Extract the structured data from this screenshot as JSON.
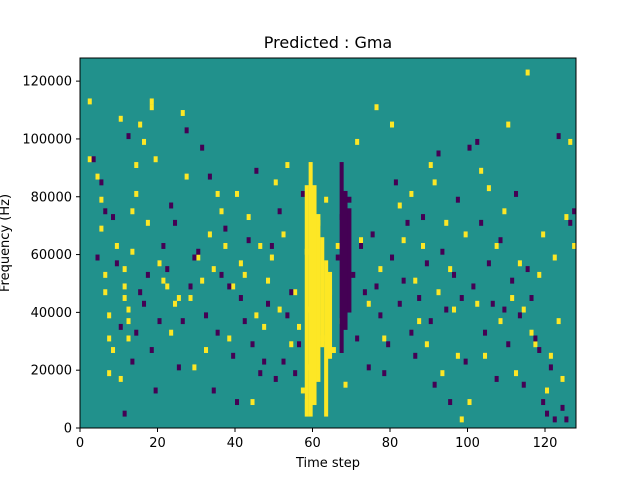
{
  "chart_data": {
    "type": "heatmap",
    "title": "Predicted : Gma",
    "xlabel": "Time step",
    "ylabel": "Frequency (Hz)",
    "xlim": [
      0,
      128
    ],
    "ylim": [
      0,
      128000
    ],
    "xticks": [
      0,
      20,
      40,
      60,
      80,
      100,
      120
    ],
    "yticks": [
      0,
      20000,
      40000,
      60000,
      80000,
      100000,
      120000
    ],
    "grid": false,
    "legend": "none",
    "colors": {
      "background": "#21918c",
      "high": "#fde725",
      "low": "#440154"
    },
    "n_time_steps": 128,
    "n_freq_bins": 64,
    "bin_width_hz": 2000,
    "high_cells": [
      [
        2,
        112000
      ],
      [
        2,
        92000
      ],
      [
        4,
        86000
      ],
      [
        5,
        78000
      ],
      [
        5,
        68000
      ],
      [
        6,
        52000
      ],
      [
        6,
        46000
      ],
      [
        7,
        38000
      ],
      [
        7,
        30000
      ],
      [
        7,
        18000
      ],
      [
        8,
        26000
      ],
      [
        9,
        62000
      ],
      [
        10,
        106000
      ],
      [
        10,
        16000
      ],
      [
        11,
        54000
      ],
      [
        11,
        48000
      ],
      [
        11,
        44000
      ],
      [
        12,
        40000
      ],
      [
        12,
        36000
      ],
      [
        12,
        30000
      ],
      [
        13,
        60000
      ],
      [
        13,
        74000
      ],
      [
        14,
        80000
      ],
      [
        14,
        90000
      ],
      [
        15,
        104000
      ],
      [
        16,
        98000
      ],
      [
        17,
        70000
      ],
      [
        18,
        110000
      ],
      [
        18,
        112000
      ],
      [
        19,
        92000
      ],
      [
        20,
        56000
      ],
      [
        21,
        50000
      ],
      [
        22,
        48000
      ],
      [
        23,
        32000
      ],
      [
        24,
        42000
      ],
      [
        25,
        44000
      ],
      [
        26,
        108000
      ],
      [
        27,
        86000
      ],
      [
        28,
        44000
      ],
      [
        29,
        20000
      ],
      [
        30,
        58000
      ],
      [
        31,
        50000
      ],
      [
        32,
        26000
      ],
      [
        33,
        66000
      ],
      [
        34,
        54000
      ],
      [
        35,
        80000
      ],
      [
        36,
        74000
      ],
      [
        37,
        62000
      ],
      [
        38,
        30000
      ],
      [
        39,
        48000
      ],
      [
        40,
        80000
      ],
      [
        41,
        56000
      ],
      [
        42,
        52000
      ],
      [
        43,
        72000
      ],
      [
        44,
        8000
      ],
      [
        45,
        38000
      ],
      [
        46,
        62000
      ],
      [
        47,
        34000
      ],
      [
        48,
        50000
      ],
      [
        49,
        58000
      ],
      [
        50,
        84000
      ],
      [
        51,
        40000
      ],
      [
        52,
        66000
      ],
      [
        53,
        90000
      ],
      [
        54,
        28000
      ],
      [
        55,
        46000
      ],
      [
        56,
        34000
      ],
      [
        57,
        12000
      ],
      [
        58,
        60000
      ],
      [
        59,
        40000
      ],
      [
        59,
        20000
      ],
      [
        60,
        56000
      ],
      [
        61,
        70000
      ],
      [
        62,
        30000
      ],
      [
        63,
        78000
      ],
      [
        64,
        46000
      ],
      [
        65,
        26000
      ],
      [
        66,
        62000
      ],
      [
        67,
        36000
      ],
      [
        68,
        14000
      ],
      [
        71,
        98000
      ],
      [
        72,
        64000
      ],
      [
        74,
        42000
      ],
      [
        76,
        110000
      ],
      [
        77,
        54000
      ],
      [
        78,
        30000
      ],
      [
        80,
        104000
      ],
      [
        82,
        76000
      ],
      [
        83,
        64000
      ],
      [
        85,
        80000
      ],
      [
        86,
        50000
      ],
      [
        87,
        36000
      ],
      [
        88,
        62000
      ],
      [
        89,
        28000
      ],
      [
        90,
        90000
      ],
      [
        91,
        84000
      ],
      [
        92,
        46000
      ],
      [
        93,
        18000
      ],
      [
        94,
        70000
      ],
      [
        95,
        54000
      ],
      [
        96,
        40000
      ],
      [
        97,
        24000
      ],
      [
        98,
        2000
      ],
      [
        99,
        66000
      ],
      [
        100,
        8000
      ],
      [
        102,
        42000
      ],
      [
        103,
        88000
      ],
      [
        104,
        24000
      ],
      [
        105,
        82000
      ],
      [
        107,
        62000
      ],
      [
        108,
        36000
      ],
      [
        109,
        74000
      ],
      [
        110,
        104000
      ],
      [
        111,
        44000
      ],
      [
        112,
        18000
      ],
      [
        113,
        56000
      ],
      [
        114,
        40000
      ],
      [
        115,
        122000
      ],
      [
        116,
        32000
      ],
      [
        117,
        28000
      ],
      [
        118,
        52000
      ],
      [
        119,
        66000
      ],
      [
        120,
        12000
      ],
      [
        121,
        24000
      ],
      [
        122,
        58000
      ],
      [
        123,
        36000
      ],
      [
        124,
        16000
      ],
      [
        125,
        72000
      ],
      [
        126,
        98000
      ],
      [
        127,
        62000
      ]
    ],
    "low_cells": [
      [
        3,
        92000
      ],
      [
        4,
        58000
      ],
      [
        5,
        84000
      ],
      [
        6,
        74000
      ],
      [
        8,
        72000
      ],
      [
        9,
        56000
      ],
      [
        10,
        34000
      ],
      [
        11,
        4000
      ],
      [
        12,
        100000
      ],
      [
        13,
        22000
      ],
      [
        14,
        32000
      ],
      [
        15,
        46000
      ],
      [
        16,
        42000
      ],
      [
        17,
        52000
      ],
      [
        18,
        26000
      ],
      [
        19,
        12000
      ],
      [
        20,
        36000
      ],
      [
        21,
        62000
      ],
      [
        22,
        54000
      ],
      [
        23,
        76000
      ],
      [
        24,
        70000
      ],
      [
        25,
        20000
      ],
      [
        26,
        36000
      ],
      [
        27,
        102000
      ],
      [
        28,
        48000
      ],
      [
        29,
        58000
      ],
      [
        30,
        60000
      ],
      [
        31,
        96000
      ],
      [
        32,
        38000
      ],
      [
        33,
        86000
      ],
      [
        34,
        12000
      ],
      [
        35,
        32000
      ],
      [
        36,
        52000
      ],
      [
        37,
        68000
      ],
      [
        38,
        48000
      ],
      [
        39,
        24000
      ],
      [
        40,
        8000
      ],
      [
        41,
        44000
      ],
      [
        42,
        36000
      ],
      [
        43,
        64000
      ],
      [
        44,
        28000
      ],
      [
        45,
        88000
      ],
      [
        46,
        18000
      ],
      [
        47,
        22000
      ],
      [
        48,
        42000
      ],
      [
        49,
        62000
      ],
      [
        50,
        16000
      ],
      [
        51,
        74000
      ],
      [
        52,
        22000
      ],
      [
        53,
        38000
      ],
      [
        54,
        46000
      ],
      [
        55,
        18000
      ],
      [
        56,
        28000
      ],
      [
        57,
        80000
      ],
      [
        58,
        10000
      ],
      [
        66,
        58000
      ],
      [
        67,
        72000
      ],
      [
        68,
        74000
      ],
      [
        69,
        78000
      ],
      [
        70,
        52000
      ],
      [
        71,
        30000
      ],
      [
        72,
        62000
      ],
      [
        73,
        46000
      ],
      [
        74,
        20000
      ],
      [
        75,
        66000
      ],
      [
        76,
        48000
      ],
      [
        77,
        38000
      ],
      [
        78,
        18000
      ],
      [
        79,
        28000
      ],
      [
        80,
        58000
      ],
      [
        81,
        84000
      ],
      [
        82,
        42000
      ],
      [
        83,
        50000
      ],
      [
        84,
        70000
      ],
      [
        85,
        32000
      ],
      [
        86,
        24000
      ],
      [
        87,
        44000
      ],
      [
        88,
        72000
      ],
      [
        89,
        56000
      ],
      [
        90,
        36000
      ],
      [
        91,
        14000
      ],
      [
        92,
        94000
      ],
      [
        93,
        60000
      ],
      [
        94,
        40000
      ],
      [
        95,
        8000
      ],
      [
        96,
        52000
      ],
      [
        97,
        78000
      ],
      [
        98,
        44000
      ],
      [
        99,
        22000
      ],
      [
        100,
        96000
      ],
      [
        101,
        48000
      ],
      [
        102,
        98000
      ],
      [
        103,
        70000
      ],
      [
        104,
        32000
      ],
      [
        105,
        56000
      ],
      [
        106,
        42000
      ],
      [
        107,
        16000
      ],
      [
        108,
        64000
      ],
      [
        109,
        40000
      ],
      [
        110,
        28000
      ],
      [
        111,
        50000
      ],
      [
        112,
        80000
      ],
      [
        113,
        38000
      ],
      [
        114,
        14000
      ],
      [
        115,
        54000
      ],
      [
        116,
        44000
      ],
      [
        117,
        30000
      ],
      [
        118,
        26000
      ],
      [
        119,
        8000
      ],
      [
        120,
        4000
      ],
      [
        121,
        20000
      ],
      [
        122,
        2000
      ],
      [
        123,
        100000
      ],
      [
        124,
        6000
      ],
      [
        125,
        2000
      ],
      [
        126,
        70000
      ],
      [
        127,
        74000
      ]
    ],
    "high_bands": [
      {
        "t": 58,
        "from": 4000,
        "to": 84000
      },
      {
        "t": 59,
        "from": 4000,
        "to": 92000
      },
      {
        "t": 60,
        "from": 8000,
        "to": 84000
      },
      {
        "t": 61,
        "from": 16000,
        "to": 74000
      },
      {
        "t": 62,
        "from": 28000,
        "to": 66000
      },
      {
        "t": 63,
        "from": 4000,
        "to": 58000
      },
      {
        "t": 64,
        "from": 24000,
        "to": 54000
      }
    ],
    "low_bands": [
      {
        "t": 67,
        "from": 26000,
        "to": 92000
      },
      {
        "t": 68,
        "from": 34000,
        "to": 82000
      },
      {
        "t": 69,
        "from": 40000,
        "to": 76000
      }
    ]
  }
}
